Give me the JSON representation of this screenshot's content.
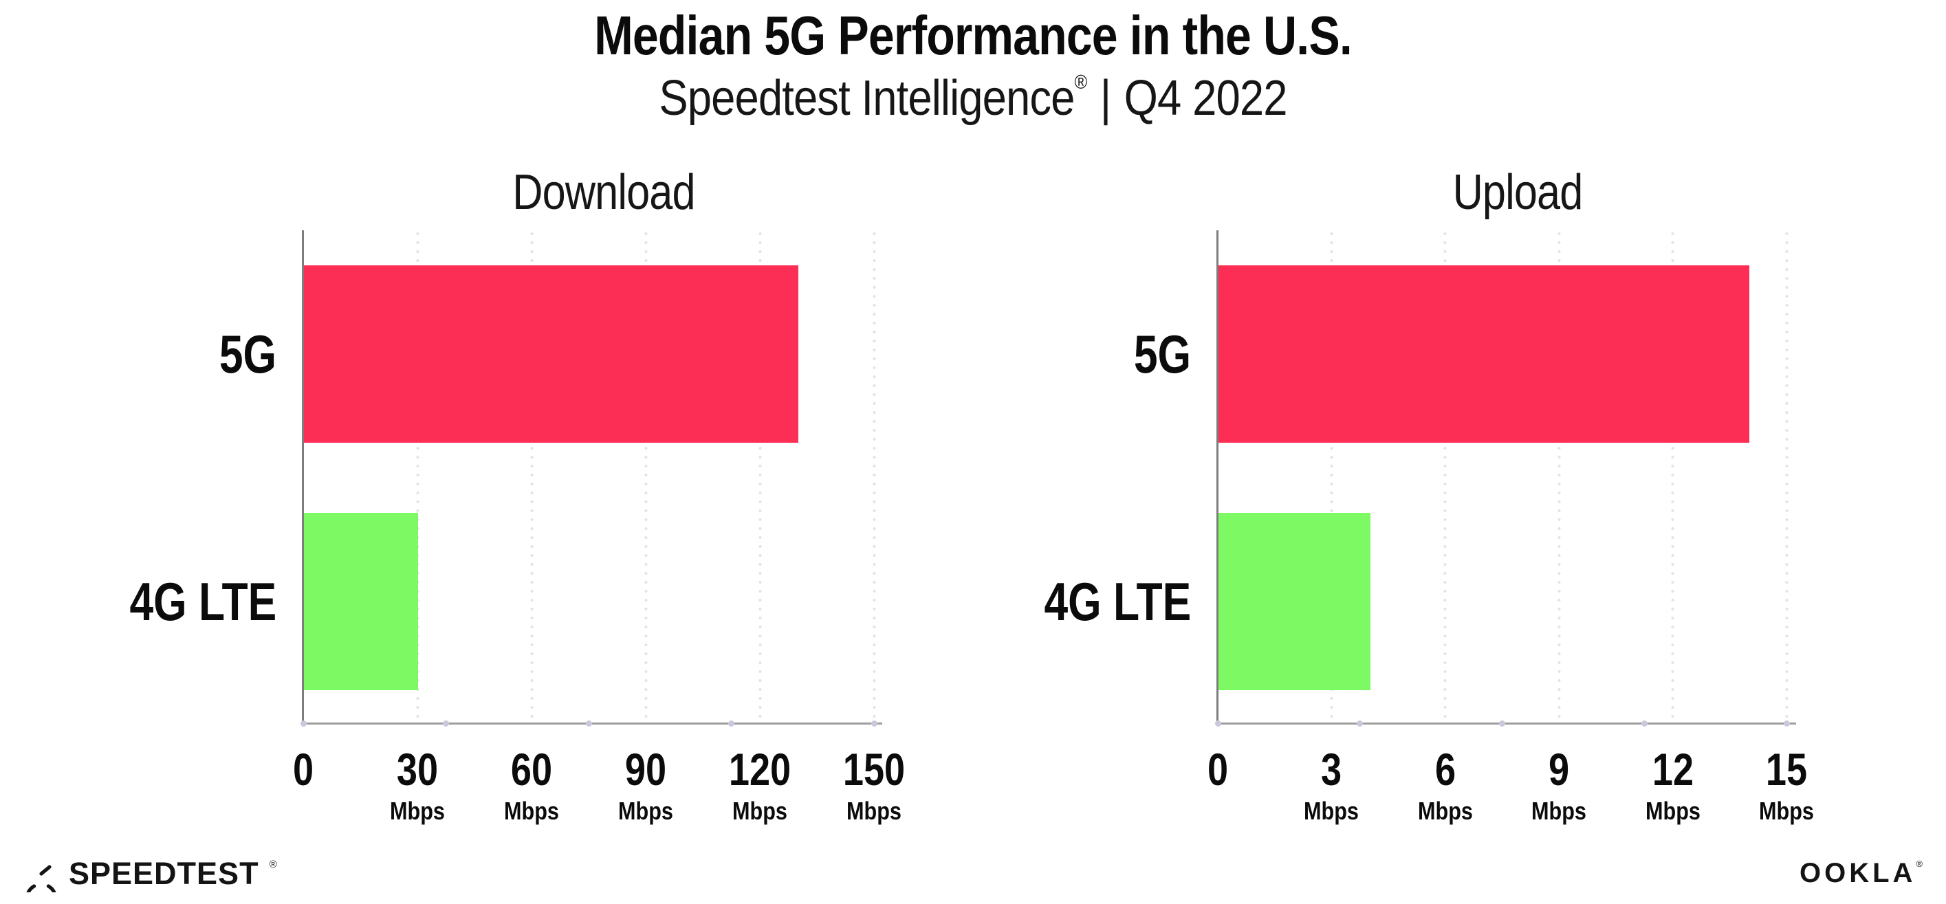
{
  "header": {
    "title": "Median 5G Performance in the U.S.",
    "subtitle_brand": "Speedtest Intelligence",
    "subtitle_reg": "®",
    "subtitle_divider": "|",
    "subtitle_period": "Q4 2022"
  },
  "chart_data": [
    {
      "type": "bar",
      "orientation": "horizontal",
      "title": "Download",
      "categories": [
        "5G",
        "4G LTE"
      ],
      "values": [
        130,
        30
      ],
      "unit": "Mbps",
      "x_ticks": [
        0,
        30,
        60,
        90,
        120,
        150
      ],
      "xlim": [
        0,
        150
      ],
      "bar_colors": [
        "#FD2E55",
        "#7DF964"
      ],
      "grid": "dotted-vertical",
      "legend": "none"
    },
    {
      "type": "bar",
      "orientation": "horizontal",
      "title": "Upload",
      "categories": [
        "5G",
        "4G LTE"
      ],
      "values": [
        14,
        4
      ],
      "unit": "Mbps",
      "x_ticks": [
        0,
        3,
        6,
        9,
        12,
        15
      ],
      "xlim": [
        0,
        15
      ],
      "bar_colors": [
        "#FD2E55",
        "#7DF964"
      ],
      "grid": "dotted-vertical",
      "legend": "none"
    }
  ],
  "colors": {
    "bar_5g": "#FD2E55",
    "bar_4g_lte": "#7DF964",
    "axis_vertical": "#7d7d7d",
    "axis_horizontal": "#9e9e9e",
    "gridline": "#e2e2ee",
    "tick_dot": "#c9c9dd",
    "text": "#111111",
    "background": "#ffffff"
  },
  "footer": {
    "speedtest_text": "SPEEDTEST",
    "speedtest_reg": "®",
    "speedtest_gauge_icon": "gauge-icon",
    "ookla_text": "OOKLA",
    "ookla_reg": "®"
  }
}
